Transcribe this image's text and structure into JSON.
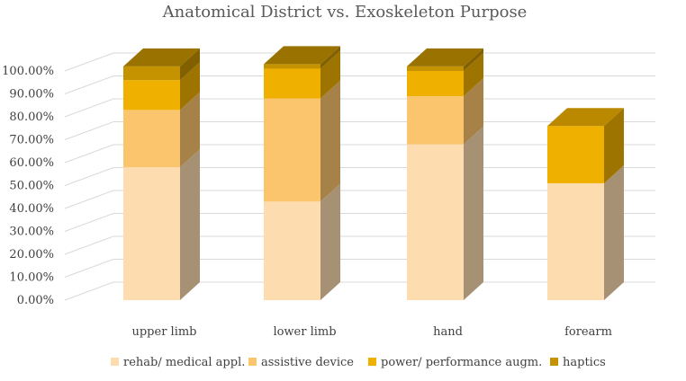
{
  "chart_data": {
    "type": "bar",
    "stacked": true,
    "style": "3d-column",
    "title": "Anatomical District vs. Exoskeleton Purpose",
    "xlabel": "",
    "ylabel": "",
    "ylim": [
      0,
      100
    ],
    "yticks": [
      "0.00%",
      "10.00%",
      "20.00%",
      "30.00%",
      "40.00%",
      "50.00%",
      "60.00%",
      "70.00%",
      "80.00%",
      "90.00%",
      "100.00%"
    ],
    "grid": true,
    "legend_position": "bottom",
    "categories": [
      "upper limb",
      "lower limb",
      "hand",
      "forearm"
    ],
    "series": [
      {
        "name": "rehab/ medical appl.",
        "color": "#FDDCAF",
        "values": [
          58,
          43,
          68,
          51
        ]
      },
      {
        "name": "assistive device",
        "color": "#FBC56D",
        "values": [
          25,
          45,
          21,
          0
        ]
      },
      {
        "name": "power/ performance augm.",
        "color": "#F0B000",
        "values": [
          13,
          13,
          11,
          25
        ]
      },
      {
        "name": "haptics",
        "color": "#C59200",
        "values": [
          6,
          2,
          2,
          0
        ]
      }
    ]
  }
}
